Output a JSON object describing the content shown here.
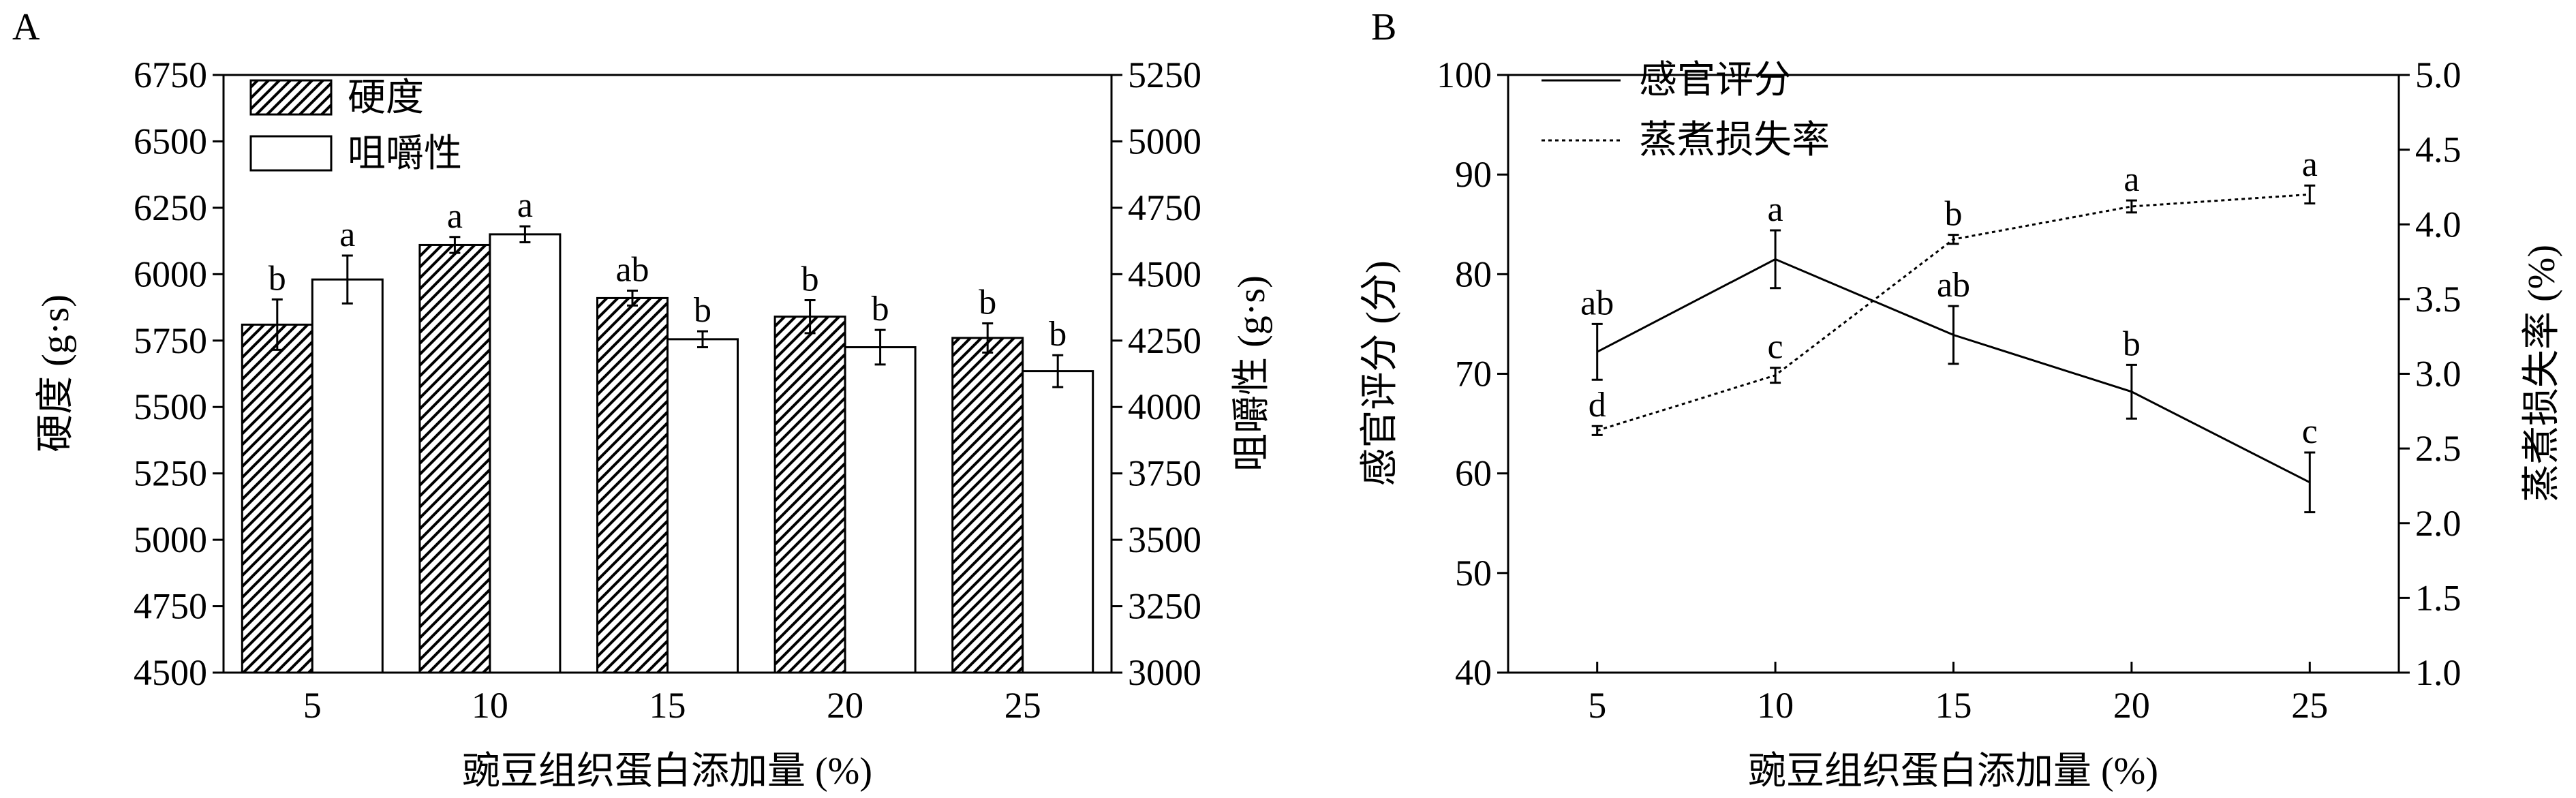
{
  "chart_data": [
    {
      "panel": "A",
      "type": "bar",
      "xlabel": "豌豆组织蛋白添加量 (%)",
      "categories": [
        "5",
        "10",
        "15",
        "20",
        "25"
      ],
      "ylabel": "硬度 (g·s)",
      "ylim": [
        4500,
        6750
      ],
      "yticks": [
        "4500",
        "4750",
        "5000",
        "5250",
        "5500",
        "5750",
        "6000",
        "6250",
        "6500",
        "6750"
      ],
      "y2label": "咀嚼性 (g·s)",
      "y2lim": [
        3000,
        5250
      ],
      "y2ticks": [
        "3000",
        "3250",
        "3500",
        "3750",
        "4000",
        "4250",
        "4500",
        "4750",
        "5000",
        "5250"
      ],
      "series": [
        {
          "name": "硬度",
          "axis": "left",
          "pattern": "hatch",
          "values": [
            5810,
            6110,
            5910,
            5840,
            5760
          ],
          "errors": [
            95,
            30,
            28,
            62,
            55
          ],
          "labels": [
            "b",
            "a",
            "ab",
            "b",
            "b"
          ]
        },
        {
          "name": "咀嚼性",
          "axis": "right",
          "pattern": "white",
          "values": [
            4480,
            4650,
            4255,
            4225,
            4135
          ],
          "errors": [
            90,
            30,
            30,
            65,
            60
          ],
          "labels": [
            "a",
            "a",
            "b",
            "b",
            "b"
          ]
        }
      ],
      "legend_position": "top-left",
      "grid": false
    },
    {
      "panel": "B",
      "type": "line",
      "xlabel": "豌豆组织蛋白添加量 (%)",
      "x": [
        "5",
        "10",
        "15",
        "20",
        "25"
      ],
      "ylabel": "感官评分 (分)",
      "ylim": [
        40,
        100
      ],
      "yticks": [
        "40",
        "50",
        "60",
        "70",
        "80",
        "90",
        "100"
      ],
      "y2label": "蒸煮损失率 (%)",
      "y2lim": [
        1.0,
        5.0
      ],
      "y2ticks": [
        "1.0",
        "1.5",
        "2.0",
        "2.5",
        "3.0",
        "3.5",
        "4.0",
        "4.5",
        "5.0"
      ],
      "series": [
        {
          "name": "感官评分",
          "axis": "left",
          "style": "solid",
          "values": [
            72.2,
            81.5,
            73.9,
            68.2,
            59.1
          ],
          "errors": [
            2.8,
            2.9,
            2.9,
            2.7,
            3.0
          ],
          "labels": [
            "ab",
            "a",
            "ab",
            "b",
            "c"
          ]
        },
        {
          "name": "蒸煮损失率",
          "axis": "right",
          "style": "dotted",
          "values": [
            2.62,
            2.99,
            3.9,
            4.12,
            4.2
          ],
          "errors": [
            0.03,
            0.05,
            0.03,
            0.04,
            0.06
          ],
          "labels": [
            "d",
            "c",
            "b",
            "a",
            "a"
          ]
        }
      ],
      "legend_position": "top-left",
      "grid": false
    }
  ]
}
